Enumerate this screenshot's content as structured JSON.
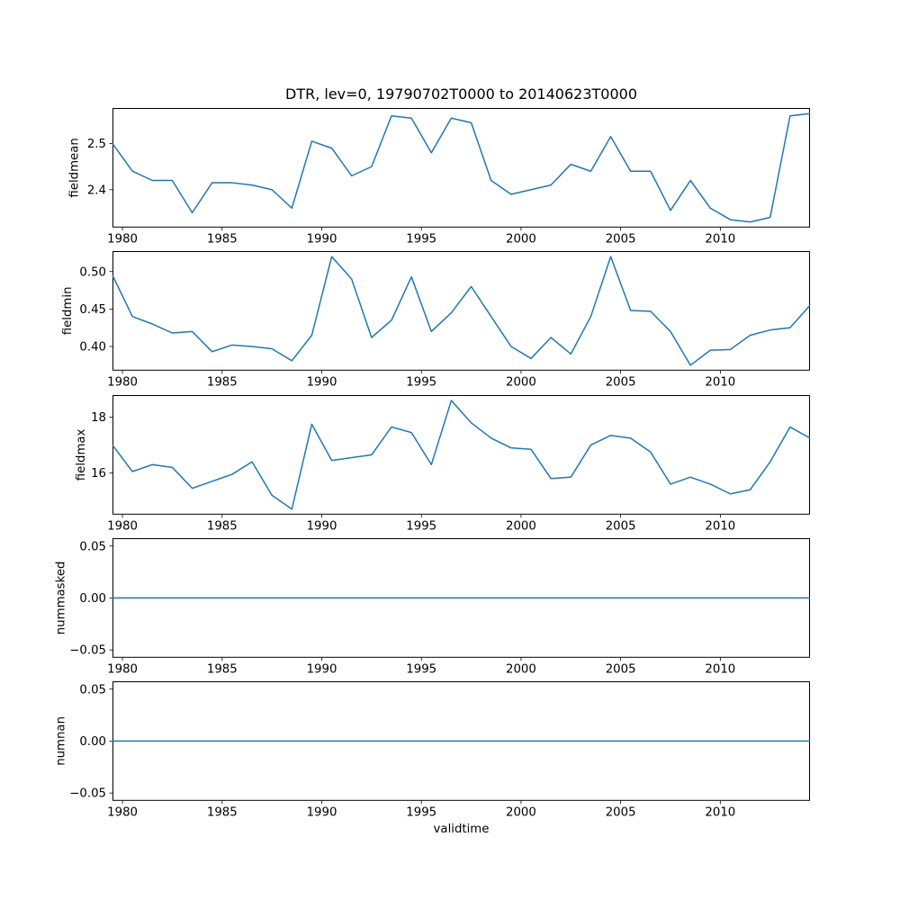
{
  "figure": {
    "title": "DTR, lev=0, 19790702T0000 to 20140623T0000",
    "xlabel": "validtime",
    "background": "#ffffff",
    "line_color": "#1f77b4"
  },
  "chart_data": [
    {
      "type": "line",
      "ylabel": "fieldmean",
      "x": [
        1979.5,
        1980.5,
        1981.5,
        1982.5,
        1983.5,
        1984.5,
        1985.5,
        1986.5,
        1987.5,
        1988.5,
        1989.5,
        1990.5,
        1991.5,
        1992.5,
        1993.5,
        1994.5,
        1995.5,
        1996.5,
        1997.5,
        1998.5,
        1999.5,
        2000.5,
        2001.5,
        2002.5,
        2003.5,
        2004.5,
        2005.5,
        2006.5,
        2007.5,
        2008.5,
        2009.5,
        2010.5,
        2011.5,
        2012.5,
        2013.5,
        2014.5
      ],
      "values": [
        2.5,
        2.44,
        2.42,
        2.42,
        2.35,
        2.415,
        2.415,
        2.41,
        2.4,
        2.36,
        2.505,
        2.49,
        2.43,
        2.45,
        2.56,
        2.555,
        2.48,
        2.555,
        2.545,
        2.42,
        2.39,
        2.4,
        2.41,
        2.455,
        2.44,
        2.515,
        2.44,
        2.44,
        2.355,
        2.42,
        2.36,
        2.335,
        2.33,
        2.34,
        2.56,
        2.565
      ],
      "xlim": [
        1979.5,
        2014.5
      ],
      "ylim": [
        2.318,
        2.577
      ],
      "xticks": [
        1980,
        1985,
        1990,
        1995,
        2000,
        2005,
        2010
      ],
      "xtick_labels": [
        "1980",
        "1985",
        "1990",
        "1995",
        "2000",
        "2005",
        "2010"
      ],
      "yticks": [
        2.4,
        2.5
      ],
      "ytick_labels": [
        "2.4",
        "2.5"
      ],
      "grid": false
    },
    {
      "type": "line",
      "ylabel": "fieldmin",
      "x": [
        1979.5,
        1980.5,
        1981.5,
        1982.5,
        1983.5,
        1984.5,
        1985.5,
        1986.5,
        1987.5,
        1988.5,
        1989.5,
        1990.5,
        1991.5,
        1992.5,
        1993.5,
        1994.5,
        1995.5,
        1996.5,
        1997.5,
        1998.5,
        1999.5,
        2000.5,
        2001.5,
        2002.5,
        2003.5,
        2004.5,
        2005.5,
        2006.5,
        2007.5,
        2008.5,
        2009.5,
        2010.5,
        2011.5,
        2012.5,
        2013.5,
        2014.5
      ],
      "values": [
        0.495,
        0.44,
        0.43,
        0.418,
        0.42,
        0.393,
        0.402,
        0.4,
        0.397,
        0.381,
        0.415,
        0.52,
        0.49,
        0.412,
        0.435,
        0.493,
        0.42,
        0.445,
        0.48,
        0.44,
        0.4,
        0.384,
        0.412,
        0.39,
        0.44,
        0.52,
        0.448,
        0.447,
        0.42,
        0.375,
        0.395,
        0.396,
        0.415,
        0.422,
        0.425,
        0.455
      ],
      "xlim": [
        1979.5,
        2014.5
      ],
      "ylim": [
        0.3678,
        0.5273
      ],
      "xticks": [
        1980,
        1985,
        1990,
        1995,
        2000,
        2005,
        2010
      ],
      "xtick_labels": [
        "1980",
        "1985",
        "1990",
        "1995",
        "2000",
        "2005",
        "2010"
      ],
      "yticks": [
        0.4,
        0.45,
        0.5
      ],
      "ytick_labels": [
        "0.40",
        "0.45",
        "0.50"
      ],
      "grid": false
    },
    {
      "type": "line",
      "ylabel": "fieldmax",
      "x": [
        1979.5,
        1980.5,
        1981.5,
        1982.5,
        1983.5,
        1984.5,
        1985.5,
        1986.5,
        1987.5,
        1988.5,
        1989.5,
        1990.5,
        1991.5,
        1992.5,
        1993.5,
        1994.5,
        1995.5,
        1996.5,
        1997.5,
        1998.5,
        1999.5,
        2000.5,
        2001.5,
        2002.5,
        2003.5,
        2004.5,
        2005.5,
        2006.5,
        2007.5,
        2008.5,
        2009.5,
        2010.5,
        2011.5,
        2012.5,
        2013.5,
        2014.5
      ],
      "values": [
        17.0,
        16.05,
        16.3,
        16.2,
        15.45,
        15.7,
        15.95,
        16.4,
        15.2,
        14.7,
        17.75,
        16.45,
        16.55,
        16.65,
        17.65,
        17.45,
        16.3,
        18.6,
        17.8,
        17.25,
        16.9,
        16.85,
        15.8,
        15.85,
        17.0,
        17.35,
        17.25,
        16.75,
        15.6,
        15.85,
        15.6,
        15.25,
        15.4,
        16.4,
        17.65,
        17.25
      ],
      "xlim": [
        1979.5,
        2014.5
      ],
      "ylim": [
        14.505,
        18.795
      ],
      "xticks": [
        1980,
        1985,
        1990,
        1995,
        2000,
        2005,
        2010
      ],
      "xtick_labels": [
        "1980",
        "1985",
        "1990",
        "1995",
        "2000",
        "2005",
        "2010"
      ],
      "yticks": [
        16,
        18
      ],
      "ytick_labels": [
        "16",
        "18"
      ],
      "grid": false
    },
    {
      "type": "line",
      "ylabel": "nummasked",
      "x": [
        1979.5,
        1980.5,
        1981.5,
        1982.5,
        1983.5,
        1984.5,
        1985.5,
        1986.5,
        1987.5,
        1988.5,
        1989.5,
        1990.5,
        1991.5,
        1992.5,
        1993.5,
        1994.5,
        1995.5,
        1996.5,
        1997.5,
        1998.5,
        1999.5,
        2000.5,
        2001.5,
        2002.5,
        2003.5,
        2004.5,
        2005.5,
        2006.5,
        2007.5,
        2008.5,
        2009.5,
        2010.5,
        2011.5,
        2012.5,
        2013.5,
        2014.5
      ],
      "values": [
        0,
        0,
        0,
        0,
        0,
        0,
        0,
        0,
        0,
        0,
        0,
        0,
        0,
        0,
        0,
        0,
        0,
        0,
        0,
        0,
        0,
        0,
        0,
        0,
        0,
        0,
        0,
        0,
        0,
        0,
        0,
        0,
        0,
        0,
        0,
        0
      ],
      "xlim": [
        1979.5,
        2014.5
      ],
      "ylim": [
        -0.0575,
        0.0575
      ],
      "xticks": [
        1980,
        1985,
        1990,
        1995,
        2000,
        2005,
        2010
      ],
      "xtick_labels": [
        "1980",
        "1985",
        "1990",
        "1995",
        "2000",
        "2005",
        "2010"
      ],
      "yticks": [
        -0.05,
        0.0,
        0.05
      ],
      "ytick_labels": [
        "−0.05",
        "0.00",
        "0.05"
      ],
      "grid": false
    },
    {
      "type": "line",
      "ylabel": "numnan",
      "x": [
        1979.5,
        1980.5,
        1981.5,
        1982.5,
        1983.5,
        1984.5,
        1985.5,
        1986.5,
        1987.5,
        1988.5,
        1989.5,
        1990.5,
        1991.5,
        1992.5,
        1993.5,
        1994.5,
        1995.5,
        1996.5,
        1997.5,
        1998.5,
        1999.5,
        2000.5,
        2001.5,
        2002.5,
        2003.5,
        2004.5,
        2005.5,
        2006.5,
        2007.5,
        2008.5,
        2009.5,
        2010.5,
        2011.5,
        2012.5,
        2013.5,
        2014.5
      ],
      "values": [
        0,
        0,
        0,
        0,
        0,
        0,
        0,
        0,
        0,
        0,
        0,
        0,
        0,
        0,
        0,
        0,
        0,
        0,
        0,
        0,
        0,
        0,
        0,
        0,
        0,
        0,
        0,
        0,
        0,
        0,
        0,
        0,
        0,
        0,
        0,
        0
      ],
      "xlim": [
        1979.5,
        2014.5
      ],
      "ylim": [
        -0.0575,
        0.0575
      ],
      "xticks": [
        1980,
        1985,
        1990,
        1995,
        2000,
        2005,
        2010
      ],
      "xtick_labels": [
        "1980",
        "1985",
        "1990",
        "1995",
        "2000",
        "2005",
        "2010"
      ],
      "yticks": [
        -0.05,
        0.0,
        0.05
      ],
      "ytick_labels": [
        "−0.05",
        "0.00",
        "0.05"
      ],
      "grid": false
    }
  ]
}
